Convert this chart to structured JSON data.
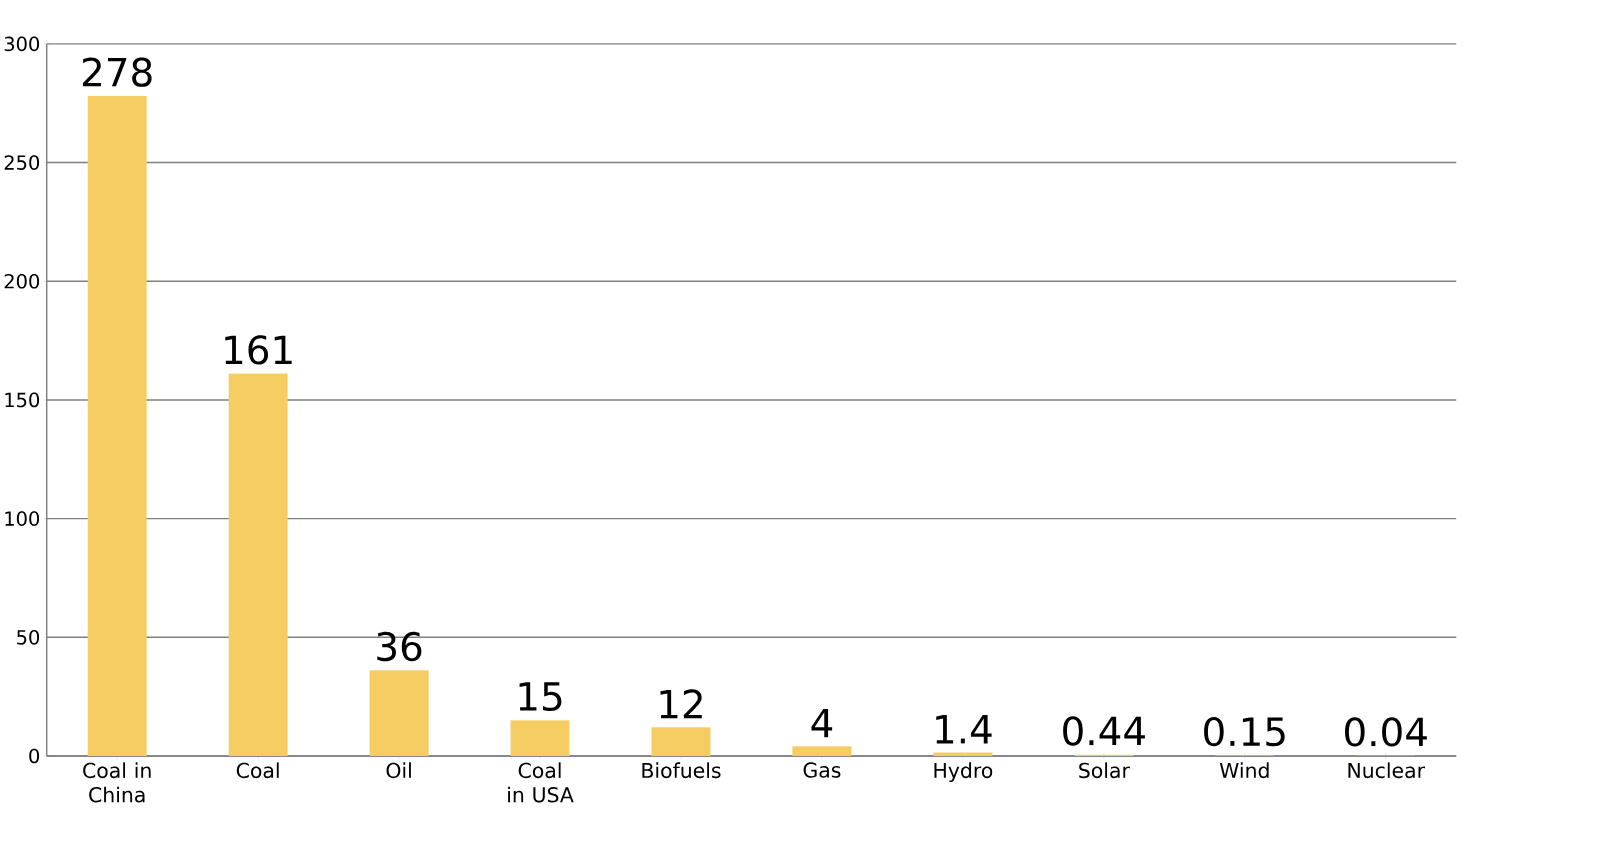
{
  "chart_data": {
    "type": "bar",
    "categories": [
      "Coal in China",
      "Coal",
      "Oil",
      "Coal in USA",
      "Biofuels",
      "Gas",
      "Hydro",
      "Solar",
      "Wind",
      "Nuclear"
    ],
    "values": [
      278,
      161,
      36,
      15,
      12,
      4,
      1.4,
      0.44,
      0.15,
      0.04
    ],
    "color": "#f5cd62",
    "ylim": [
      0,
      300
    ],
    "yticks": [
      0,
      50,
      100,
      150,
      200,
      250,
      300
    ],
    "grid": "y",
    "data_labels": true
  }
}
